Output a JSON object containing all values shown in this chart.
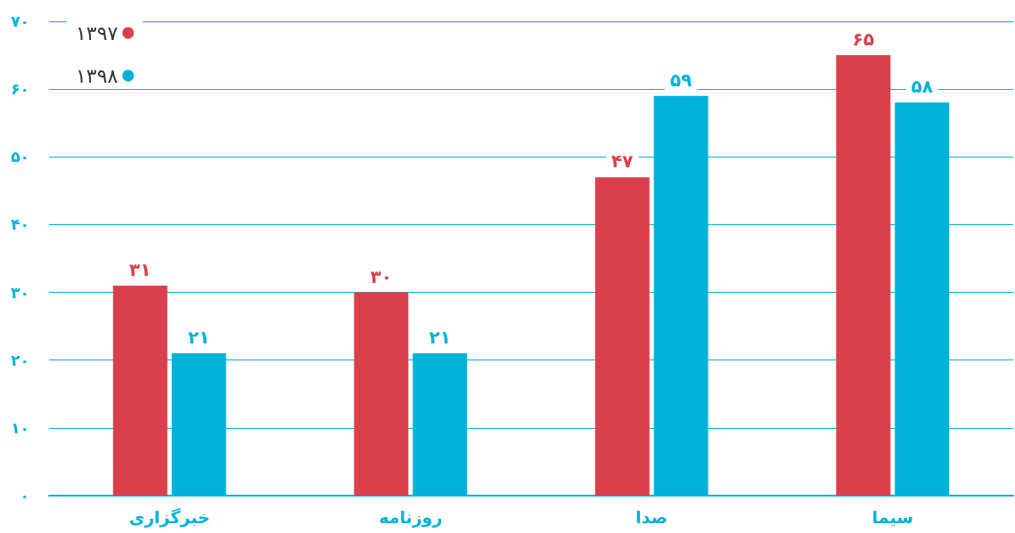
{
  "chart_data": {
    "type": "bar",
    "categories": [
      "خبرگزاری",
      "روزنامه",
      "صدا",
      "سیما"
    ],
    "series": [
      {
        "name": "۱۳۹۷",
        "color": "#da404b",
        "values": [
          31,
          30,
          47,
          65
        ],
        "value_labels": [
          "۳۱",
          "۳۰",
          "۴۷",
          "۶۵"
        ]
      },
      {
        "name": "۱۳۹۸",
        "color": "#00b2d9",
        "values": [
          21,
          21,
          59,
          58
        ],
        "value_labels": [
          "۲۱",
          "۲۱",
          "۵۹",
          "۵۸"
        ]
      }
    ],
    "ylim": [
      0,
      70
    ],
    "yticks": [
      {
        "value": 0,
        "label": "۰"
      },
      {
        "value": 10,
        "label": "۱۰"
      },
      {
        "value": 20,
        "label": "۲۰"
      },
      {
        "value": 30,
        "label": "۳۰"
      },
      {
        "value": 40,
        "label": "۴۰"
      },
      {
        "value": 50,
        "label": "۵۰"
      },
      {
        "value": 60,
        "label": "۶۰"
      },
      {
        "value": 70,
        "label": "۷۰"
      }
    ],
    "grid": "y",
    "legend": "top left"
  }
}
